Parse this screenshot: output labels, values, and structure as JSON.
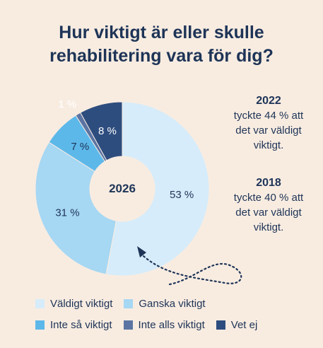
{
  "title_line1": "Hur viktigt är eller skulle",
  "title_line2": "rehabilitering vara för dig?",
  "chart_data": {
    "type": "pie",
    "center_label": "2026",
    "slices": [
      {
        "label": "Väldigt viktigt",
        "value": 53,
        "display": "53 %",
        "color": "#d6ecfa"
      },
      {
        "label": "Ganska viktigt",
        "value": 31,
        "display": "31 %",
        "color": "#a6d7f3"
      },
      {
        "label": "Inte så viktigt",
        "value": 7,
        "display": "7 %",
        "color": "#5db8ea"
      },
      {
        "label": "Inte alls viktigt",
        "value": 1,
        "display": "1 %",
        "color": "#5b74a3"
      },
      {
        "label": "Vet ej",
        "value": 8,
        "display": "8 %",
        "color": "#2e4d7f"
      }
    ]
  },
  "notes": [
    {
      "year": "2022",
      "lines": [
        "tyckte 44 % att",
        "det var väldigt",
        "viktigt."
      ]
    },
    {
      "year": "2018",
      "lines": [
        "tyckte 40 % att",
        "det var väldigt",
        "viktigt."
      ]
    }
  ],
  "legend_rows": [
    [
      0,
      1
    ],
    [
      2,
      3,
      4
    ]
  ]
}
